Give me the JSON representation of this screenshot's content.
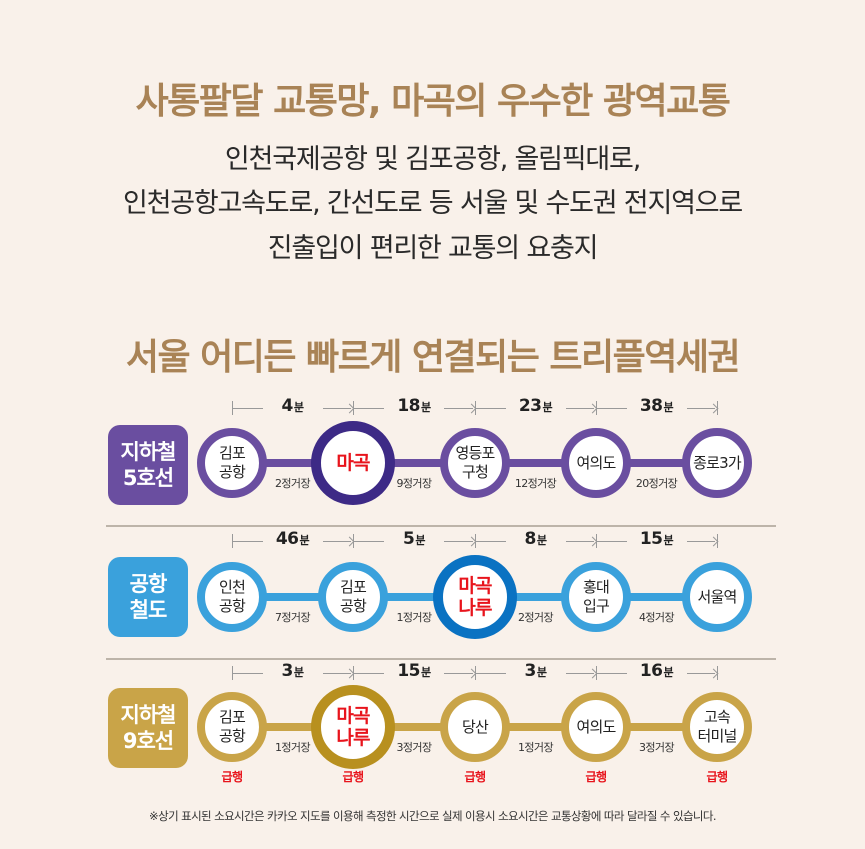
{
  "header": {
    "title": "사통팔달 교통망, 마곡의 우수한 광역교통",
    "description_lines": [
      "인천국제공항 및 김포공항, 올림픽대로,",
      "인천공항고속도로, 간선도로 등 서울 및 수도권 전지역으로",
      "진출입이 편리한 교통의 요충지"
    ]
  },
  "section": {
    "title": "서울 어디든 빠르게 연결되는 트리플역세권"
  },
  "time_unit": "분",
  "lines": [
    {
      "badge_line1": "지하철",
      "badge_line2": "5호선",
      "color": "#6a4ea0",
      "featured_color": "#3d2a86",
      "stations": [
        {
          "name_line1": "김포",
          "name_line2": "공항",
          "featured": false
        },
        {
          "name_line1": "마곡",
          "name_line2": "",
          "featured": true
        },
        {
          "name_line1": "영등포",
          "name_line2": "구청",
          "featured": false
        },
        {
          "name_line1": "여의도",
          "name_line2": "",
          "featured": false
        },
        {
          "name_line1": "종로3가",
          "name_line2": "",
          "featured": false
        }
      ],
      "segments": [
        {
          "minutes": "4",
          "stops": "2정거장"
        },
        {
          "minutes": "18",
          "stops": "9정거장"
        },
        {
          "minutes": "23",
          "stops": "12정거장"
        },
        {
          "minutes": "38",
          "stops": "20정거장"
        }
      ]
    },
    {
      "badge_line1": "공항",
      "badge_line2": "철도",
      "color": "#3aa1dc",
      "featured_color": "#0a72c2",
      "stations": [
        {
          "name_line1": "인천",
          "name_line2": "공항",
          "featured": false
        },
        {
          "name_line1": "김포",
          "name_line2": "공항",
          "featured": false
        },
        {
          "name_line1": "마곡",
          "name_line2": "나루",
          "featured": true
        },
        {
          "name_line1": "홍대",
          "name_line2": "입구",
          "featured": false
        },
        {
          "name_line1": "서울역",
          "name_line2": "",
          "featured": false
        }
      ],
      "segments": [
        {
          "minutes": "46",
          "stops": "7정거장"
        },
        {
          "minutes": "5",
          "stops": "1정거장"
        },
        {
          "minutes": "8",
          "stops": "2정거장"
        },
        {
          "minutes": "15",
          "stops": "4정거장"
        }
      ]
    },
    {
      "badge_line1": "지하철",
      "badge_line2": "9호선",
      "color": "#c9a448",
      "featured_color": "#b8901f",
      "express_label": "급행",
      "stations": [
        {
          "name_line1": "김포",
          "name_line2": "공항",
          "featured": false,
          "express": true
        },
        {
          "name_line1": "마곡",
          "name_line2": "나루",
          "featured": true,
          "express": true
        },
        {
          "name_line1": "당산",
          "name_line2": "",
          "featured": false,
          "express": true
        },
        {
          "name_line1": "여의도",
          "name_line2": "",
          "featured": false,
          "express": true
        },
        {
          "name_line1": "고속",
          "name_line2": "터미널",
          "featured": false,
          "express": true
        }
      ],
      "segments": [
        {
          "minutes": "3",
          "stops": "1정거장"
        },
        {
          "minutes": "15",
          "stops": "3정거장"
        },
        {
          "minutes": "3",
          "stops": "1정거장"
        },
        {
          "minutes": "16",
          "stops": "3정거장"
        }
      ]
    }
  ],
  "footnote": "※상기 표시된 소요시간은 카카오 지도를 이용해 측정한 시간으로 실제 이용시 소요시간은 교통상황에 따라 달라질 수 있습니다.",
  "colors": {
    "background": "#f9f1ea",
    "heading": "#a98356",
    "highlight_red": "#e8141c"
  }
}
